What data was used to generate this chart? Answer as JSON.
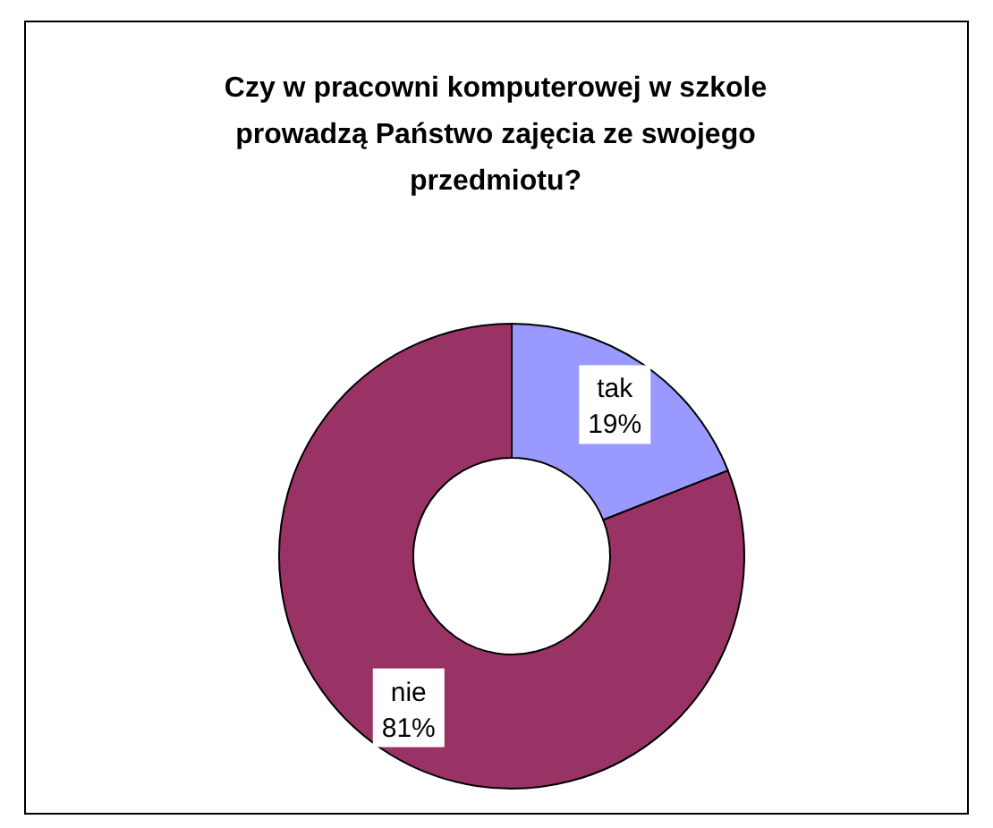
{
  "chart_data": {
    "type": "donut",
    "title": "Czy w pracowni komputerowej w szkole prowadzą Państwo zajęcia ze swojego przedmiotu?",
    "categories": [
      "tak",
      "nie"
    ],
    "values": [
      19,
      81
    ],
    "colors": [
      "#9999ff",
      "#993366"
    ],
    "value_labels": [
      "19%",
      "81%"
    ]
  }
}
